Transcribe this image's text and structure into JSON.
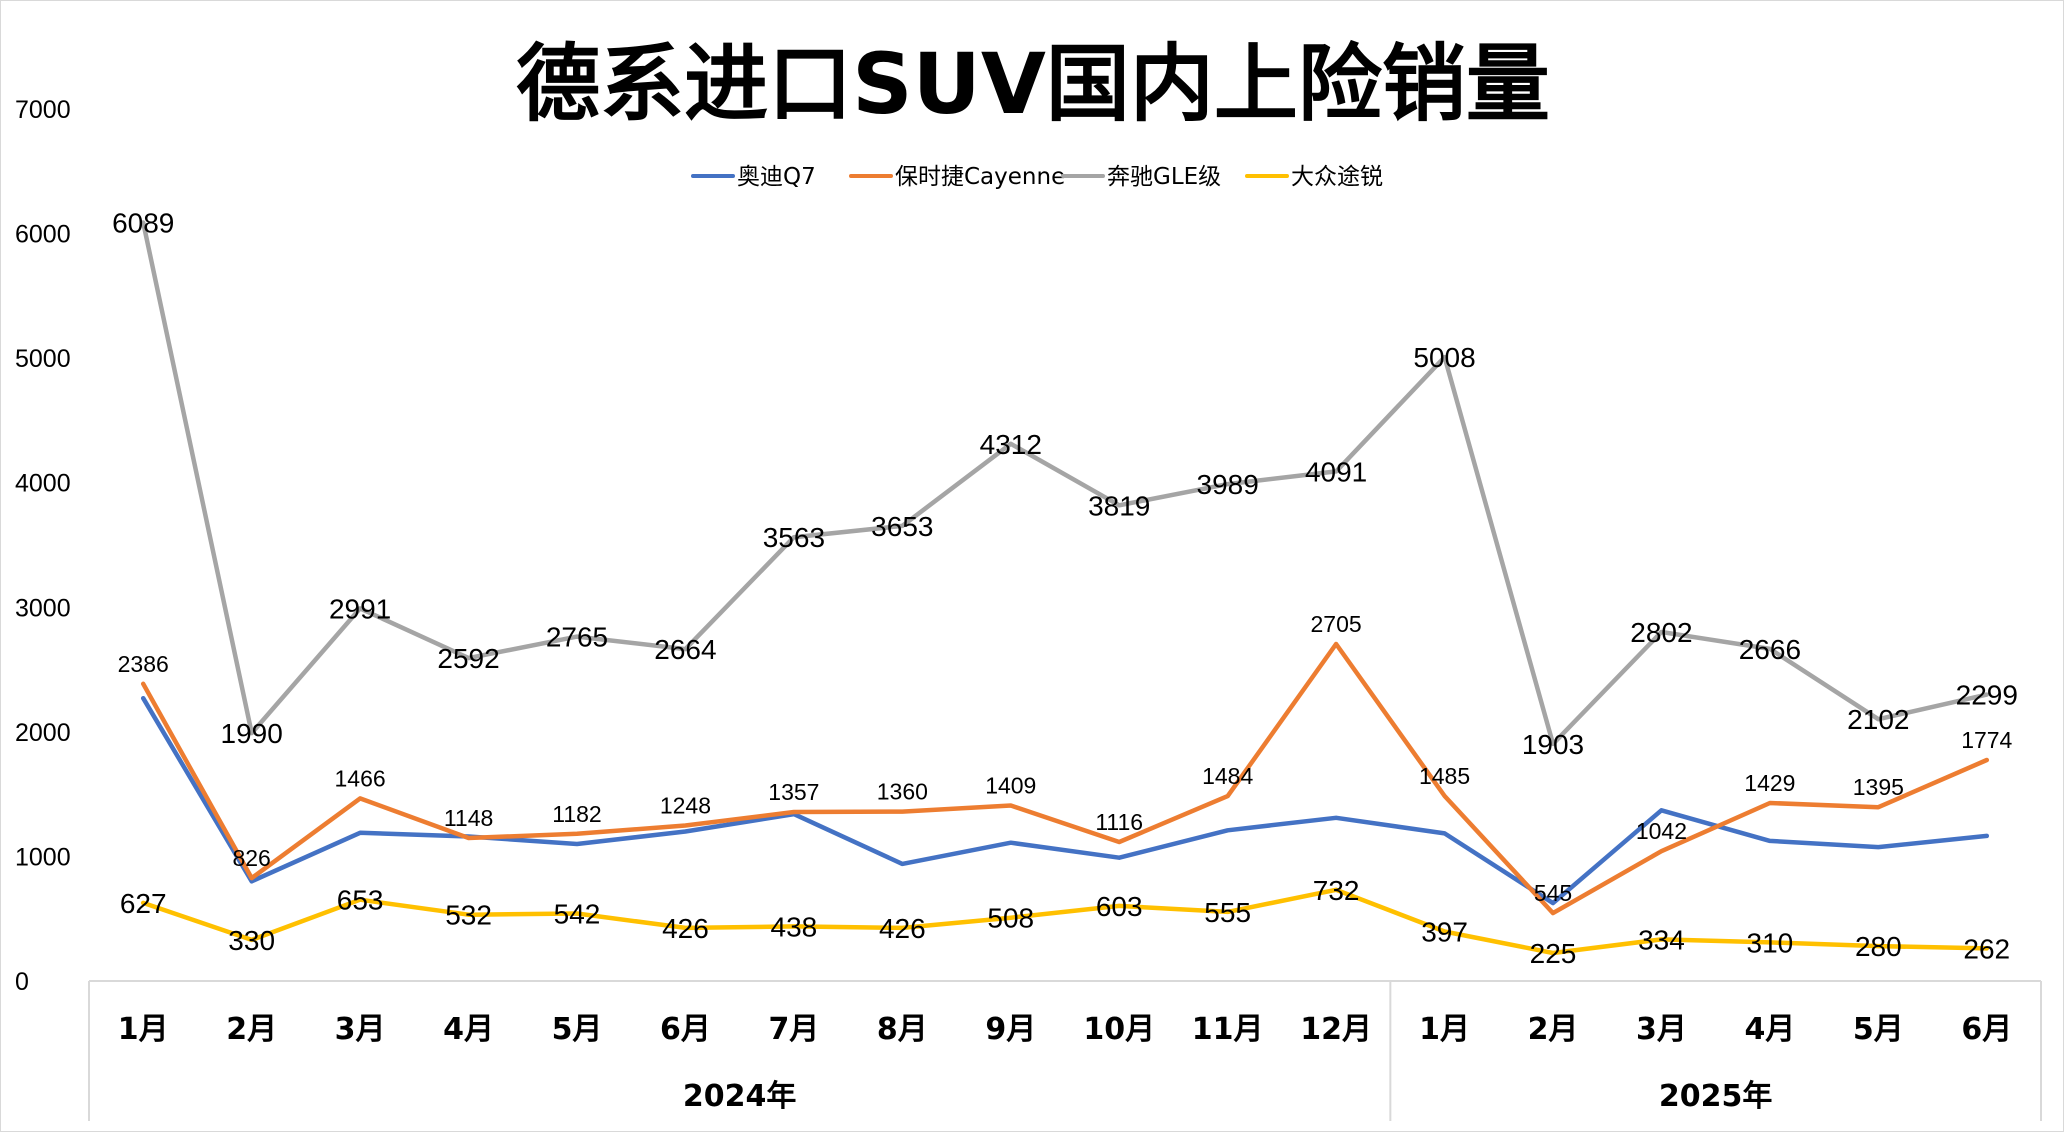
{
  "chart_data": {
    "type": "line",
    "title": "德系进口SUV国内上险销量",
    "xlabel": "",
    "ylabel": "",
    "ylim": [
      0,
      7000
    ],
    "yticks": [
      0,
      1000,
      2000,
      3000,
      4000,
      5000,
      6000,
      7000
    ],
    "groups": [
      {
        "label": "2024年",
        "count": 12
      },
      {
        "label": "2025年",
        "count": 6
      }
    ],
    "categories": [
      "1月",
      "2月",
      "3月",
      "4月",
      "5月",
      "6月",
      "7月",
      "8月",
      "9月",
      "10月",
      "11月",
      "12月",
      "1月",
      "2月",
      "3月",
      "4月",
      "5月",
      "6月"
    ],
    "legend_position": "top",
    "grid": false,
    "series": [
      {
        "name": "奥迪Q7",
        "color": "#4472C4",
        "labeled": false,
        "values": [
          2270,
          800,
          1190,
          1160,
          1100,
          1200,
          1340,
          940,
          1110,
          990,
          1210,
          1310,
          1185,
          625,
          1370,
          1125,
          1075,
          1165
        ]
      },
      {
        "name": "保时捷Cayenne",
        "color": "#ED7D31",
        "labeled": true,
        "values": [
          2386,
          826,
          1466,
          1148,
          1182,
          1248,
          1357,
          1360,
          1409,
          1116,
          1484,
          2705,
          1485,
          545,
          1042,
          1429,
          1395,
          1774
        ]
      },
      {
        "name": "奔驰GLE级",
        "color": "#A5A5A5",
        "labeled": true,
        "values": [
          6089,
          1990,
          2991,
          2592,
          2765,
          2664,
          3563,
          3653,
          4312,
          3819,
          3989,
          4091,
          5008,
          1903,
          2802,
          2666,
          2102,
          2299
        ]
      },
      {
        "name": "大众途锐",
        "color": "#FFC000",
        "labeled": true,
        "values": [
          627,
          330,
          653,
          532,
          542,
          426,
          438,
          426,
          508,
          603,
          555,
          732,
          397,
          225,
          334,
          310,
          280,
          262
        ]
      }
    ]
  }
}
